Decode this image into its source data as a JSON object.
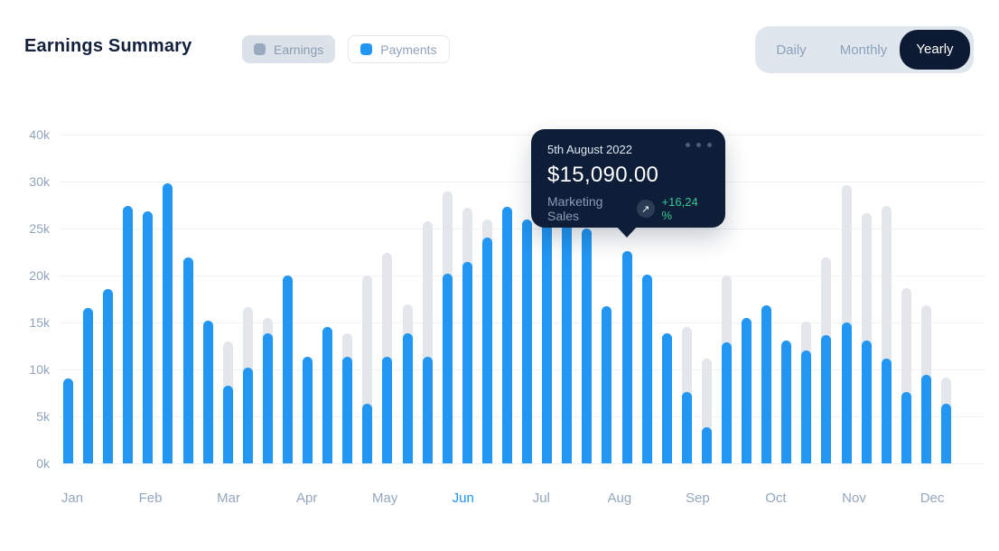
{
  "header": {
    "title": "Earnings Summary",
    "legend": [
      {
        "label": "Earnings",
        "swatch_color": "#99AAC0",
        "active": false
      },
      {
        "label": "Payments",
        "swatch_color": "#2196F3",
        "active": true
      }
    ],
    "tabs": [
      {
        "label": "Daily",
        "active": false
      },
      {
        "label": "Monthly",
        "active": false
      },
      {
        "label": "Yearly",
        "active": true
      }
    ]
  },
  "tooltip": {
    "date": "5th August 2022",
    "amount": "$15,090.00",
    "category": "Marketing Sales",
    "change": "+16,24 %",
    "trend_icon": "arrow-up-right",
    "menu_icon": "ellipsis",
    "background": "#0F1E38",
    "change_color": "#35C792"
  },
  "chart_data": {
    "type": "bar",
    "title": "Earnings Summary",
    "unit": "thousand USD",
    "grid": true,
    "y_ticks": [
      "40k",
      "30k",
      "25k",
      "20k",
      "15k",
      "10k",
      "5k",
      "0k"
    ],
    "y_axis_note": "even spacing per tick; 5k per step up to 30k, top step jumps to 40k",
    "months": [
      "Jan",
      "Feb",
      "Mar",
      "Apr",
      "May",
      "Jun",
      "Jul",
      "Aug",
      "Sep",
      "Oct",
      "Nov",
      "Dec"
    ],
    "active_month": "Jun",
    "series": [
      {
        "name": "Earnings",
        "color": "#E3E7EB"
      },
      {
        "name": "Payments",
        "color": "#2196F3"
      }
    ],
    "bars": [
      {
        "payments": 9
      },
      {
        "payments": 16.5
      },
      {
        "payments": 18.6
      },
      {
        "payments": 27.4
      },
      {
        "payments": 26.8
      },
      {
        "payments": 29.8
      },
      {
        "payments": 21.9
      },
      {
        "payments": 15.2
      },
      {
        "earnings": 13,
        "payments": 8.3
      },
      {
        "earnings": 16.6,
        "payments": 10.2
      },
      {
        "earnings": 15.5,
        "payments": 13.8
      },
      {
        "payments": 20
      },
      {
        "payments": 11.3
      },
      {
        "payments": 14.5
      },
      {
        "earnings": 13.8,
        "payments": 11.3
      },
      {
        "earnings": 20,
        "payments": 6.3
      },
      {
        "earnings": 22.4,
        "payments": 11.3
      },
      {
        "earnings": 16.9,
        "payments": 13.8
      },
      {
        "earnings": 25.8,
        "payments": 11.3
      },
      {
        "earnings": 28.9,
        "payments": 20.2
      },
      {
        "earnings": 27.2,
        "payments": 21.4
      },
      {
        "earnings": 26,
        "payments": 24
      },
      {
        "payments": 27.3
      },
      {
        "payments": 26
      },
      {
        "payments": 27
      },
      {
        "payments": 25.5
      },
      {
        "payments": 25
      },
      {
        "payments": 16.7
      },
      {
        "payments": 22.6
      },
      {
        "payments": 20.1
      },
      {
        "payments": 13.8
      },
      {
        "earnings": 14.5,
        "payments": 7.6
      },
      {
        "earnings": 11.2,
        "payments": 3.8
      },
      {
        "earnings": 20,
        "payments": 12.9
      },
      {
        "payments": 15.5
      },
      {
        "payments": 16.8
      },
      {
        "payments": 13.1
      },
      {
        "earnings": 15.1,
        "payments": 12
      },
      {
        "earnings": 21.9,
        "payments": 13.7
      },
      {
        "earnings": 29.6,
        "payments": 15
      },
      {
        "earnings": 26.6,
        "payments": 13.1
      },
      {
        "earnings": 27.4,
        "payments": 11.2
      },
      {
        "earnings": 18.7,
        "payments": 7.6
      },
      {
        "earnings": 16.8,
        "payments": 9.4
      },
      {
        "earnings": 9.1,
        "payments": 6.3
      }
    ],
    "tooltip_bar_index": 28
  }
}
